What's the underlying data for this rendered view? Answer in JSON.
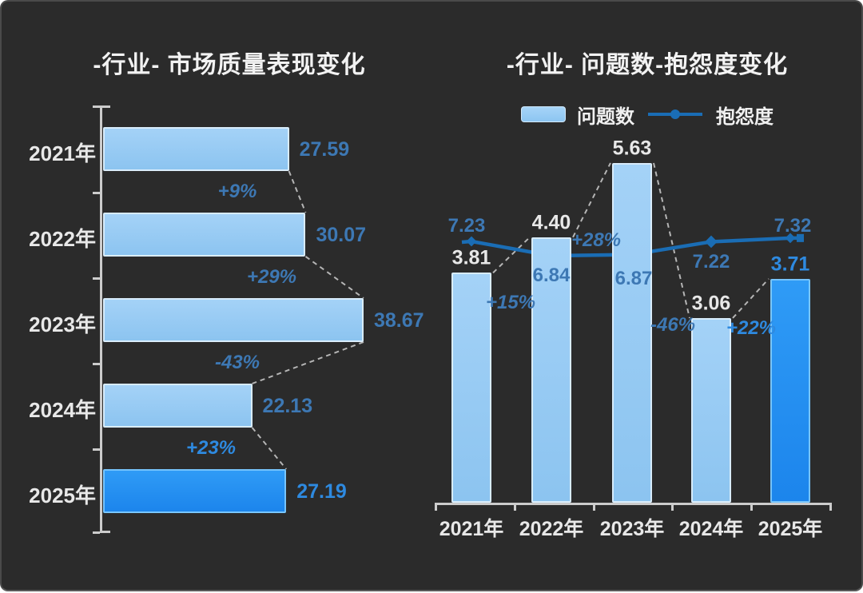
{
  "colors": {
    "background": "#2b2b2b",
    "bar_light": "#8fc8f4",
    "bar_highlight": "#2193f4",
    "line": "#1a6db5",
    "label_steel_blue": "#3d78b4",
    "label_bright_blue": "#2e8ae0",
    "label_white": "#e8e8e8",
    "axis": "#cccccc",
    "dashed_connector": "#b5b5b5"
  },
  "chart_data": [
    {
      "type": "bar",
      "orientation": "horizontal",
      "title": "-行业-  市场质量表现变化",
      "categories": [
        "2021年",
        "2022年",
        "2023年",
        "2024年",
        "2025年"
      ],
      "values": [
        27.59,
        30.07,
        38.67,
        22.13,
        27.19
      ],
      "value_labels": [
        "27.59",
        "30.07",
        "38.67",
        "22.13",
        "27.19"
      ],
      "highlight_index": 4,
      "xlim": [
        0,
        42
      ],
      "gridlines": false,
      "change_annotations": [
        {
          "text": "+9%",
          "between": [
            "2021年",
            "2022年"
          ],
          "style": "muted"
        },
        {
          "text": "+29%",
          "between": [
            "2022年",
            "2023年"
          ],
          "style": "muted"
        },
        {
          "text": "-43%",
          "between": [
            "2023年",
            "2024年"
          ],
          "style": "muted"
        },
        {
          "text": "+23%",
          "between": [
            "2024年",
            "2025年"
          ],
          "style": "bright"
        }
      ]
    },
    {
      "type": "combo-bar-line",
      "title": "-行业- 问题数-抱怨度变化",
      "categories": [
        "2021年",
        "2022年",
        "2023年",
        "2024年",
        "2025年"
      ],
      "legend_position": "top",
      "gridlines": false,
      "series": [
        {
          "name": "问题数",
          "type": "bar",
          "values": [
            3.81,
            4.4,
            5.63,
            3.06,
            3.71
          ],
          "value_labels": [
            "3.81",
            "4.40",
            "5.63",
            "3.06",
            "3.71"
          ],
          "highlight_index": 4,
          "ylim": [
            0,
            6.5
          ]
        },
        {
          "name": "抱怨度",
          "type": "line",
          "values": [
            7.23,
            6.84,
            6.87,
            7.22,
            7.32
          ],
          "value_labels": [
            "7.23",
            "6.84",
            "6.87",
            "7.22",
            "7.32"
          ]
        }
      ],
      "change_annotations": [
        {
          "text": "+15%",
          "between": [
            "2021年",
            "2022年"
          ],
          "style": "muted"
        },
        {
          "text": "+28%",
          "between": [
            "2022年",
            "2023年"
          ],
          "style": "muted"
        },
        {
          "text": "-46%",
          "between": [
            "2023年",
            "2024年"
          ],
          "style": "muted"
        },
        {
          "text": "+22%",
          "between": [
            "2024年",
            "2025年"
          ],
          "style": "bright"
        }
      ]
    }
  ]
}
